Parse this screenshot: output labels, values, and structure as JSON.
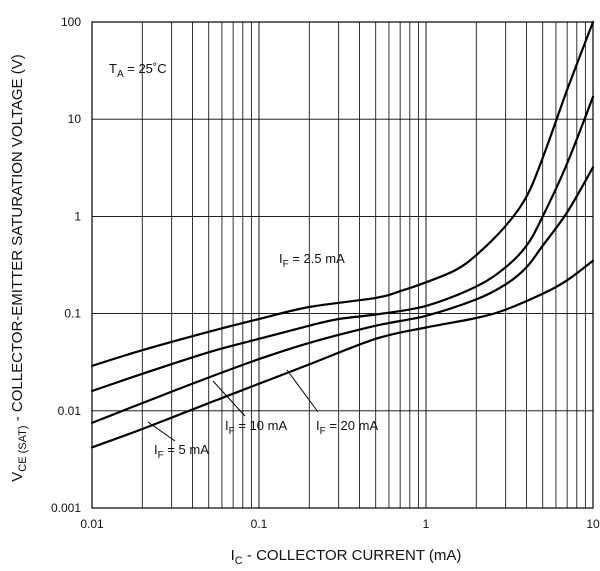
{
  "chart_data": {
    "type": "line",
    "title": "",
    "xlabel": {
      "main": "I",
      "sub": "C",
      "rest": " - COLLECTOR CURRENT (mA)"
    },
    "ylabel": {
      "main": "V",
      "sub": "CE (SAT)",
      "rest": " - COLLECTOR-EMITTER SATURATION VOLTAGE (V)"
    },
    "x_scale": "log",
    "y_scale": "log",
    "xlim": [
      0.01,
      10
    ],
    "ylim": [
      0.001,
      100
    ],
    "x_tick_labels": [
      "0.01",
      "0.1",
      "1",
      "10"
    ],
    "y_tick_labels": [
      "0.001",
      "0.01",
      "0.1",
      "1",
      "10",
      "100"
    ],
    "grid": true,
    "annotation": {
      "main": "T",
      "sub": "A",
      "rest": " = 25˚C"
    },
    "series": [
      {
        "name": {
          "main": "I",
          "sub": "F",
          "rest": " = 2.5 mA"
        },
        "x": [
          0.01,
          0.02,
          0.05,
          0.1,
          0.2,
          0.5,
          0.7,
          1,
          1.5,
          2,
          3,
          4,
          5,
          7,
          10
        ],
        "y": [
          0.029,
          0.042,
          0.065,
          0.088,
          0.117,
          0.145,
          0.17,
          0.21,
          0.28,
          0.4,
          0.8,
          1.6,
          4,
          20,
          100
        ]
      },
      {
        "name": {
          "main": "I",
          "sub": "F",
          "rest": " = 5 mA"
        },
        "x": [
          0.01,
          0.02,
          0.05,
          0.1,
          0.2,
          0.3,
          0.5,
          1,
          2,
          3,
          4,
          5,
          7,
          10
        ],
        "y": [
          0.016,
          0.024,
          0.04,
          0.055,
          0.075,
          0.088,
          0.098,
          0.12,
          0.19,
          0.3,
          0.5,
          1.0,
          3.5,
          17
        ]
      },
      {
        "name": {
          "main": "I",
          "sub": "F",
          "rest": " = 10 mA"
        },
        "x": [
          0.01,
          0.02,
          0.05,
          0.1,
          0.2,
          0.5,
          1,
          2,
          3,
          4,
          5,
          7,
          10
        ],
        "y": [
          0.0075,
          0.012,
          0.022,
          0.034,
          0.05,
          0.075,
          0.095,
          0.14,
          0.2,
          0.3,
          0.5,
          1.1,
          3.2
        ]
      },
      {
        "name": {
          "main": "I",
          "sub": "F",
          "rest": " = 20 mA"
        },
        "x": [
          0.01,
          0.02,
          0.05,
          0.1,
          0.2,
          0.5,
          1,
          2,
          3,
          5,
          7,
          10
        ],
        "y": [
          0.0042,
          0.0065,
          0.012,
          0.019,
          0.03,
          0.055,
          0.072,
          0.09,
          0.11,
          0.16,
          0.22,
          0.35
        ]
      }
    ]
  }
}
